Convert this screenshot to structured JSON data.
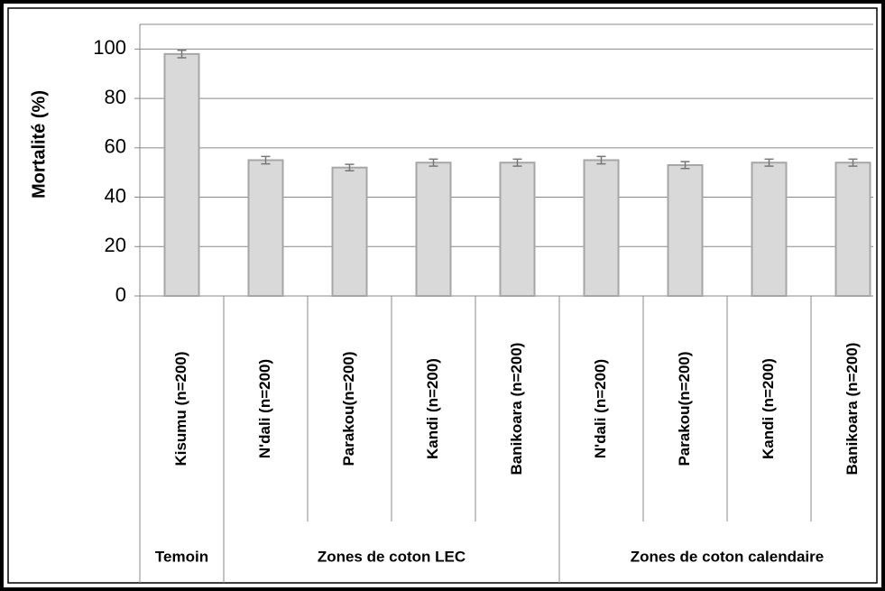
{
  "chart_data": {
    "type": "bar",
    "y_label": "Mortalité (%)",
    "categories": [
      "Kisumu (n=200)",
      "N'dali (n=200)",
      "Parakou(n=200)",
      "Kandi (n=200)",
      "Banikoara (n=200)",
      "N'dali (n=200)",
      "Parakou(n=200)",
      "Kandi (n=200)",
      "Banikoara (n=200)"
    ],
    "values": [
      98,
      55,
      52,
      54,
      54,
      55,
      53,
      54,
      54
    ],
    "errors": [
      1.5,
      1.5,
      1.3,
      1.4,
      1.4,
      1.5,
      1.4,
      1.4,
      1.4
    ],
    "groups": [
      {
        "name": "Temoin",
        "size": 1
      },
      {
        "name": "Zones de coton LEC",
        "size": 4
      },
      {
        "name": "Zones de coton calendaire",
        "size": 4
      }
    ],
    "color": "#d9d9d9",
    "edge_color": "#a6a6a6",
    "ylim": [
      0,
      110
    ],
    "yticks": [
      0,
      20,
      40,
      60,
      80,
      100
    ],
    "grid": true
  }
}
